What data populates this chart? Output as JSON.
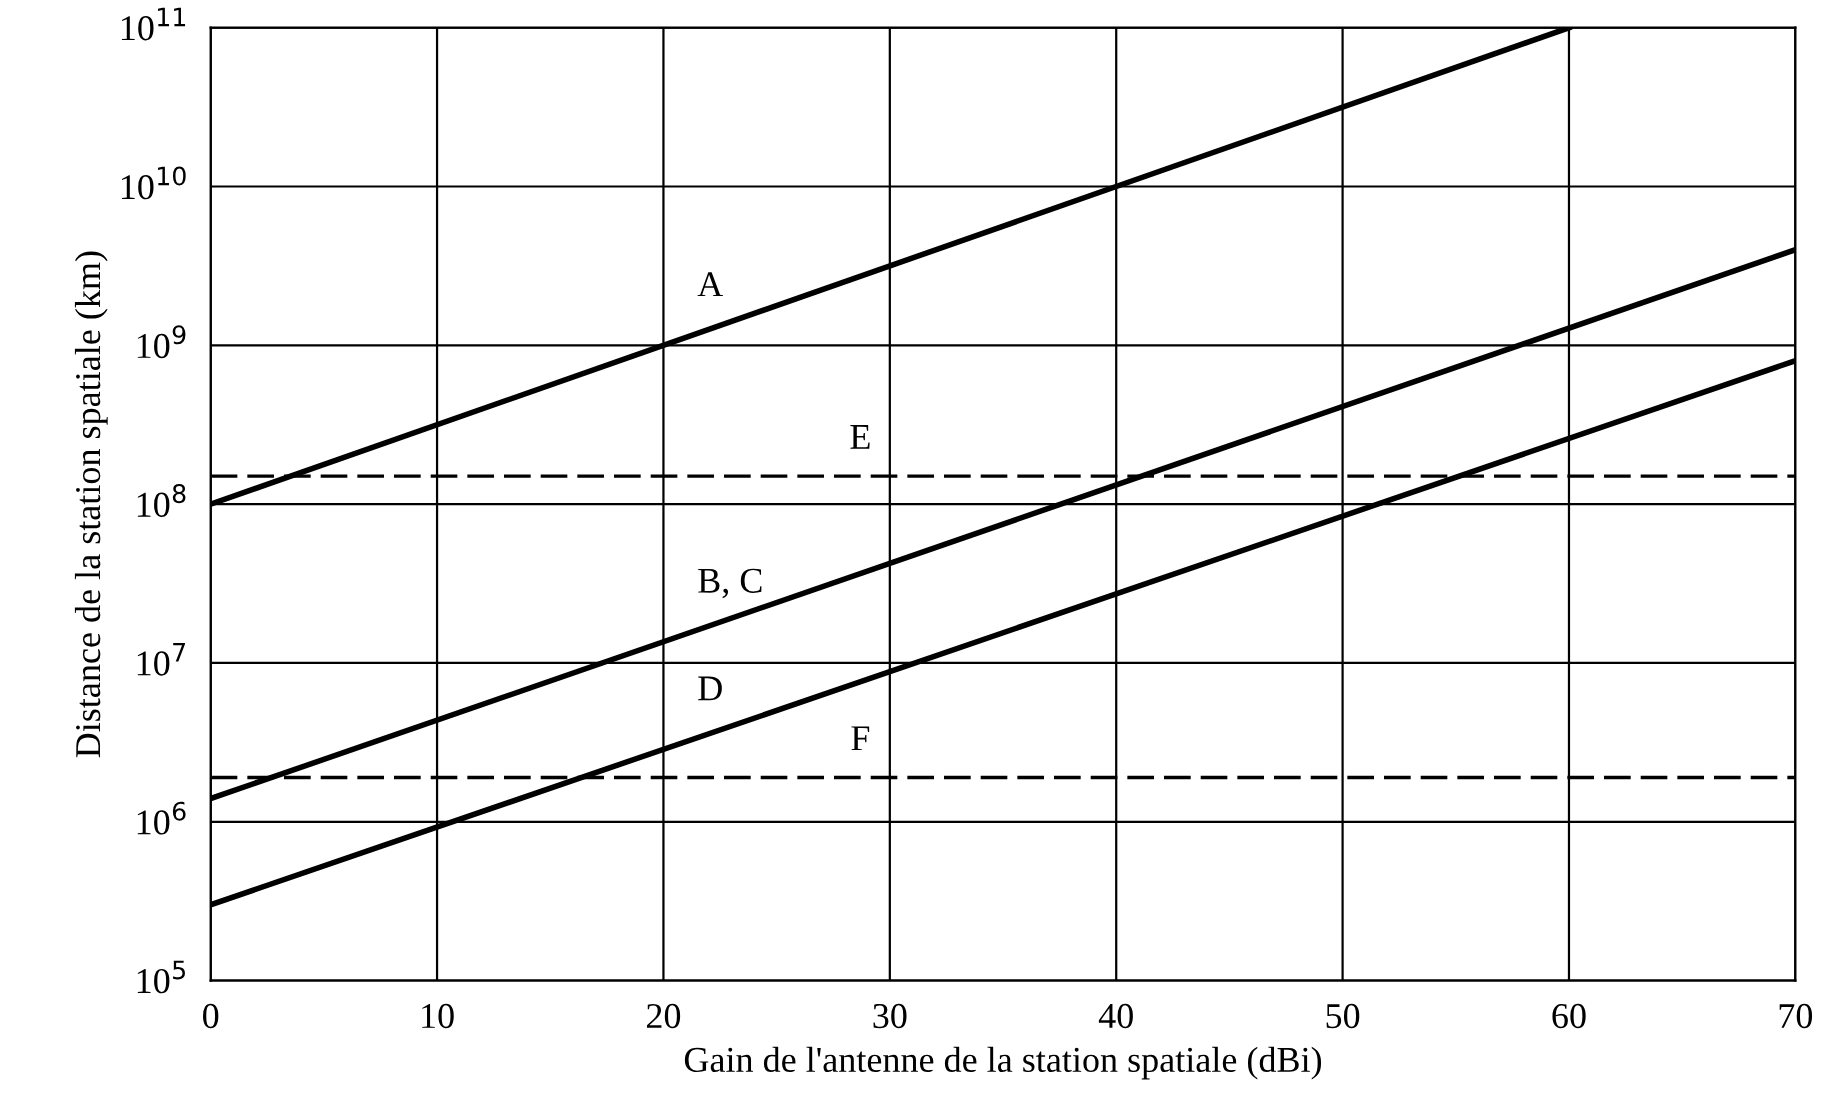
{
  "chart_data": {
    "type": "line",
    "xlabel": "Gain de l'antenne de la station spatiale (dBi)",
    "ylabel": "Distance de la station spatiale (km)",
    "log": "y",
    "grid": true,
    "line_style": "solid",
    "marker": "none",
    "xlim": [
      0,
      70
    ],
    "xticks": [
      0,
      10,
      20,
      30,
      40,
      50,
      60,
      70
    ],
    "ylim": [
      100000,
      100000000000
    ],
    "yticks": [
      {
        "value": 100000,
        "label": "10$^{5}$"
      },
      {
        "value": 1000000,
        "label": "10$^{6}$"
      },
      {
        "value": 10000000,
        "label": "10$^{7}$"
      },
      {
        "value": 100000000,
        "label": "10$^{8}$"
      },
      {
        "value": 1000000000,
        "label": "10$^{9}$"
      },
      {
        "value": 10000000000,
        "label": "10$^{10}$"
      },
      {
        "value": 100000000000,
        "label": "10$^{11}$"
      }
    ],
    "series": [
      {
        "name": "A",
        "color": "#000000",
        "x": [
          0,
          60
        ],
        "values": [
          100000000,
          100000000000
        ]
      },
      {
        "name": "B, C",
        "color": "#000000",
        "x": [
          0,
          70
        ],
        "values": [
          1400000,
          4000000000
        ]
      },
      {
        "name": "D",
        "color": "#000000",
        "x": [
          0,
          70
        ],
        "values": [
          300000,
          800000000
        ]
      }
    ],
    "ref_lines": [
      {
        "axis": "y",
        "value": 150000000,
        "color": "#000000",
        "line_style": "dashed",
        "label": "E"
      },
      {
        "axis": "y",
        "value": 1900000,
        "color": "#000000",
        "line_style": "dashed",
        "label": "F"
      }
    ]
  }
}
